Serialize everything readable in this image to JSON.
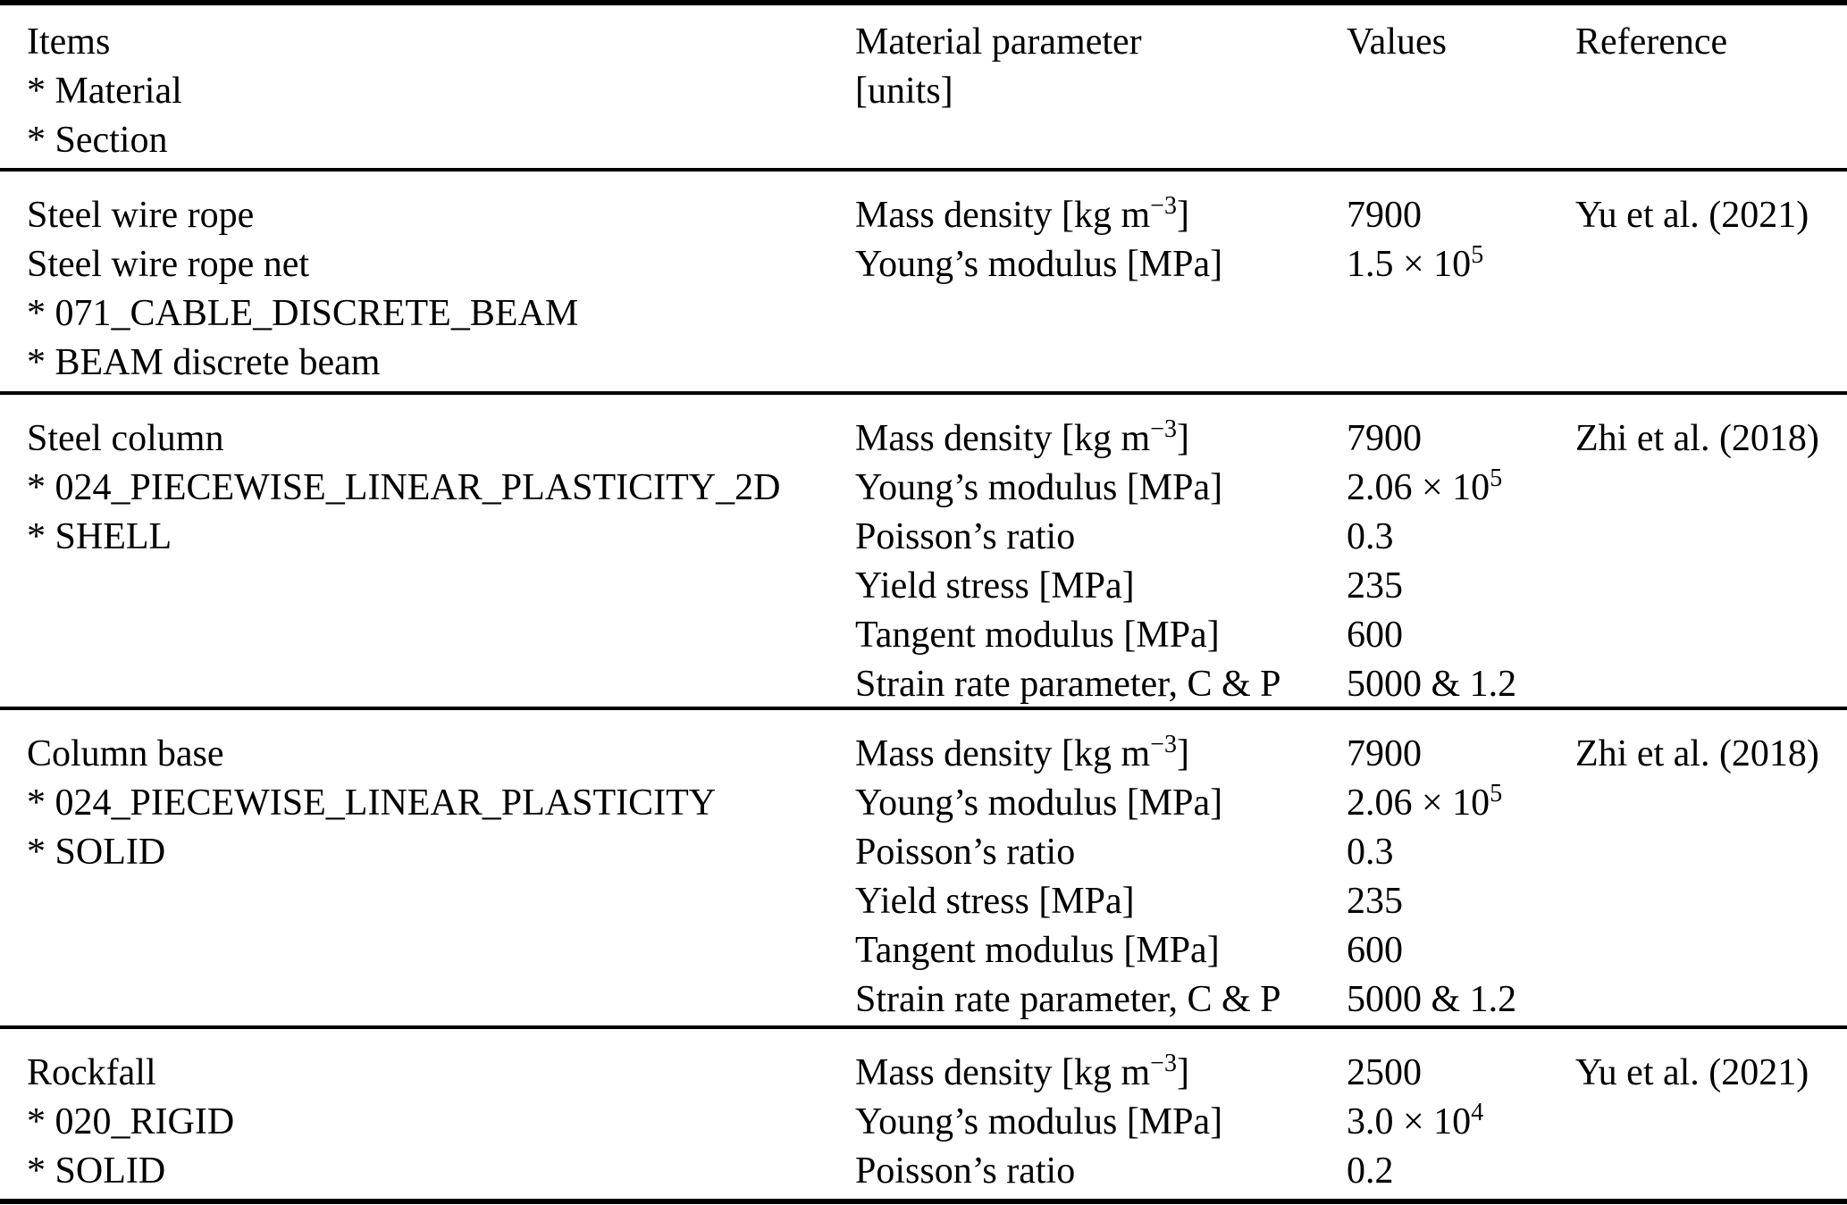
{
  "colors": {
    "background": "#ffffff",
    "text": "#000000",
    "rule": "#000000"
  },
  "table": {
    "header": {
      "items_lines": [
        "Items",
        "* Material",
        "* Section"
      ],
      "param_lines": [
        "Material parameter",
        "[units]"
      ],
      "values_label": "Values",
      "reference_label": "Reference"
    },
    "rows": [
      {
        "items": [
          "Steel wire rope",
          "Steel wire rope net",
          "* 071_CABLE_DISCRETE_BEAM",
          "* BEAM discrete beam"
        ],
        "params": [
          {
            "pre": "Mass density [kg m",
            "sup": "−3",
            "post": "]"
          },
          {
            "pre": "Young’s modulus [MPa]",
            "sup": "",
            "post": ""
          }
        ],
        "values": [
          {
            "pre": "7900",
            "sup": ""
          },
          {
            "pre": "1.5 × 10",
            "sup": "5"
          }
        ],
        "reference": "Yu et al. (2021)"
      },
      {
        "items": [
          "Steel column",
          "* 024_PIECEWISE_LINEAR_PLASTICITY_2D",
          "* SHELL"
        ],
        "params": [
          {
            "pre": "Mass density [kg m",
            "sup": "−3",
            "post": "]"
          },
          {
            "pre": "Young’s modulus [MPa]",
            "sup": "",
            "post": ""
          },
          {
            "pre": "Poisson’s ratio",
            "sup": "",
            "post": ""
          },
          {
            "pre": "Yield stress [MPa]",
            "sup": "",
            "post": ""
          },
          {
            "pre": "Tangent modulus [MPa]",
            "sup": "",
            "post": ""
          },
          {
            "pre": "Strain rate parameter, C & P",
            "sup": "",
            "post": ""
          }
        ],
        "values": [
          {
            "pre": "7900",
            "sup": ""
          },
          {
            "pre": "2.06 × 10",
            "sup": "5"
          },
          {
            "pre": "0.3",
            "sup": ""
          },
          {
            "pre": "235",
            "sup": ""
          },
          {
            "pre": "600",
            "sup": ""
          },
          {
            "pre": "5000 & 1.2",
            "sup": ""
          }
        ],
        "reference": "Zhi et al. (2018)"
      },
      {
        "items": [
          "Column base",
          "* 024_PIECEWISE_LINEAR_PLASTICITY",
          "* SOLID"
        ],
        "params": [
          {
            "pre": "Mass density [kg m",
            "sup": "−3",
            "post": "]"
          },
          {
            "pre": "Young’s modulus [MPa]",
            "sup": "",
            "post": ""
          },
          {
            "pre": "Poisson’s ratio",
            "sup": "",
            "post": ""
          },
          {
            "pre": "Yield stress [MPa]",
            "sup": "",
            "post": ""
          },
          {
            "pre": "Tangent modulus [MPa]",
            "sup": "",
            "post": ""
          },
          {
            "pre": "Strain rate parameter, C & P",
            "sup": "",
            "post": ""
          }
        ],
        "values": [
          {
            "pre": "7900",
            "sup": ""
          },
          {
            "pre": "2.06 × 10",
            "sup": "5"
          },
          {
            "pre": "0.3",
            "sup": ""
          },
          {
            "pre": "235",
            "sup": ""
          },
          {
            "pre": "600",
            "sup": ""
          },
          {
            "pre": "5000 & 1.2",
            "sup": ""
          }
        ],
        "reference": "Zhi et al. (2018)"
      },
      {
        "items": [
          "Rockfall",
          "* 020_RIGID",
          "* SOLID"
        ],
        "params": [
          {
            "pre": "Mass density [kg m",
            "sup": "−3",
            "post": "]"
          },
          {
            "pre": "Young’s modulus [MPa]",
            "sup": "",
            "post": ""
          },
          {
            "pre": "Poisson’s ratio",
            "sup": "",
            "post": ""
          }
        ],
        "values": [
          {
            "pre": "2500",
            "sup": ""
          },
          {
            "pre": "3.0 × 10",
            "sup": "4"
          },
          {
            "pre": "0.2",
            "sup": ""
          }
        ],
        "reference": "Yu et al. (2021)"
      }
    ]
  }
}
